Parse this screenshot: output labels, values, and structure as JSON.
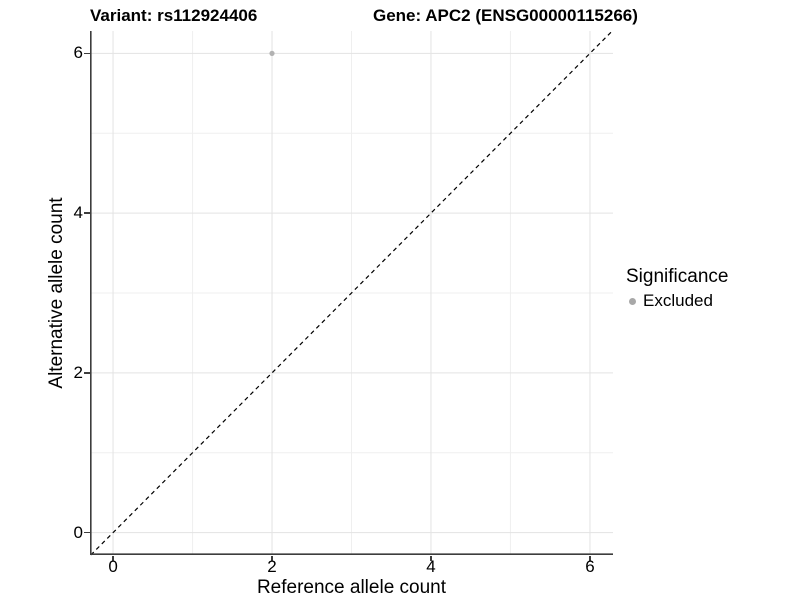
{
  "header": {
    "variant_title": "Variant: rs112924406",
    "gene_title": "Gene: APC2 (ENSG00000115266)"
  },
  "chart_data": {
    "type": "scatter",
    "title": "Variant: rs112924406 / Gene: APC2 (ENSG00000115266)",
    "xlabel": "Reference allele count",
    "ylabel": "Alternative allele count",
    "xlim": [
      -0.29,
      6.29
    ],
    "ylim": [
      -0.28,
      6.28
    ],
    "x_ticks": [
      0,
      2,
      4,
      6
    ],
    "y_ticks": [
      0,
      2,
      4,
      6
    ],
    "x_tick_labels": [
      "0",
      "2",
      "4",
      "6"
    ],
    "y_tick_labels": [
      "0",
      "2",
      "4",
      "6"
    ],
    "x_minor": [
      1,
      3,
      5
    ],
    "y_minor": [
      1,
      3,
      5
    ],
    "grid": "major+minor on white",
    "identity_line": {
      "style": "dashed",
      "slope": 1,
      "intercept": 0,
      "x1": -0.28,
      "y1": -0.28,
      "x2": 6.28,
      "y2": 6.28
    },
    "series": [
      {
        "name": "Excluded",
        "color": "#b2b2b2",
        "marker": "circle",
        "points": [
          {
            "x": 2,
            "y": 6
          }
        ]
      }
    ],
    "legend": {
      "title": "Significance",
      "position": "right",
      "items": [
        {
          "label": "Excluded",
          "color": "#a8a8a8",
          "marker": "circle"
        }
      ]
    }
  },
  "colors": {
    "background": "#ffffff",
    "grid_major": "#e3e3e3",
    "grid_minor": "#efefef",
    "axis_line": "#3d3d3d",
    "identity_line": "#000000",
    "point": "#b2b2b2",
    "text": "#000000"
  }
}
